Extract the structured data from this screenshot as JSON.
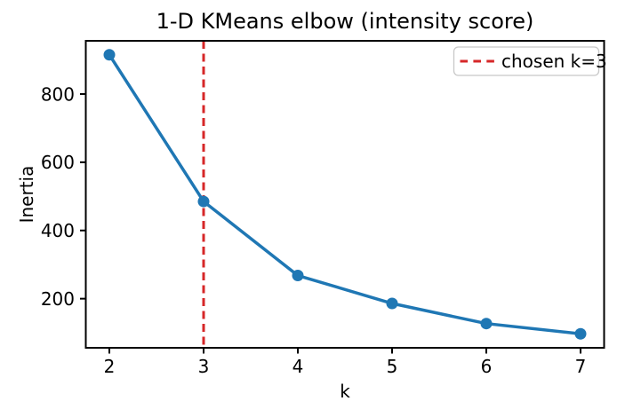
{
  "figure": {
    "kind": "matplotlib-line-chart"
  },
  "chart_data": {
    "type": "line",
    "title": "1-D KMeans elbow (intensity score)",
    "xlabel": "k",
    "ylabel": "Inertia",
    "x": [
      2,
      3,
      4,
      5,
      6,
      7
    ],
    "series": [
      {
        "name": "inertia",
        "values": [
          915,
          485,
          268,
          186,
          127,
          97
        ]
      }
    ],
    "xticks": [
      2,
      3,
      4,
      5,
      6,
      7
    ],
    "yticks": [
      200,
      400,
      600,
      800
    ],
    "xlim": [
      1.75,
      7.25
    ],
    "ylim": [
      56,
      956
    ],
    "grid": false,
    "line_color": "#1f77b4",
    "marker": "circle",
    "vline": {
      "x": 3,
      "color": "#d62728",
      "linestyle": "dashed",
      "label": "chosen k=3"
    },
    "legend": {
      "position": "upper right",
      "entries": [
        {
          "label": "chosen k=3",
          "color": "#d62728",
          "dashed": true
        }
      ]
    },
    "colors": {
      "series_blue": "#1f77b4",
      "vline_red": "#d62728",
      "spine_black": "#000000",
      "legend_border": "#c8c8c8"
    }
  }
}
